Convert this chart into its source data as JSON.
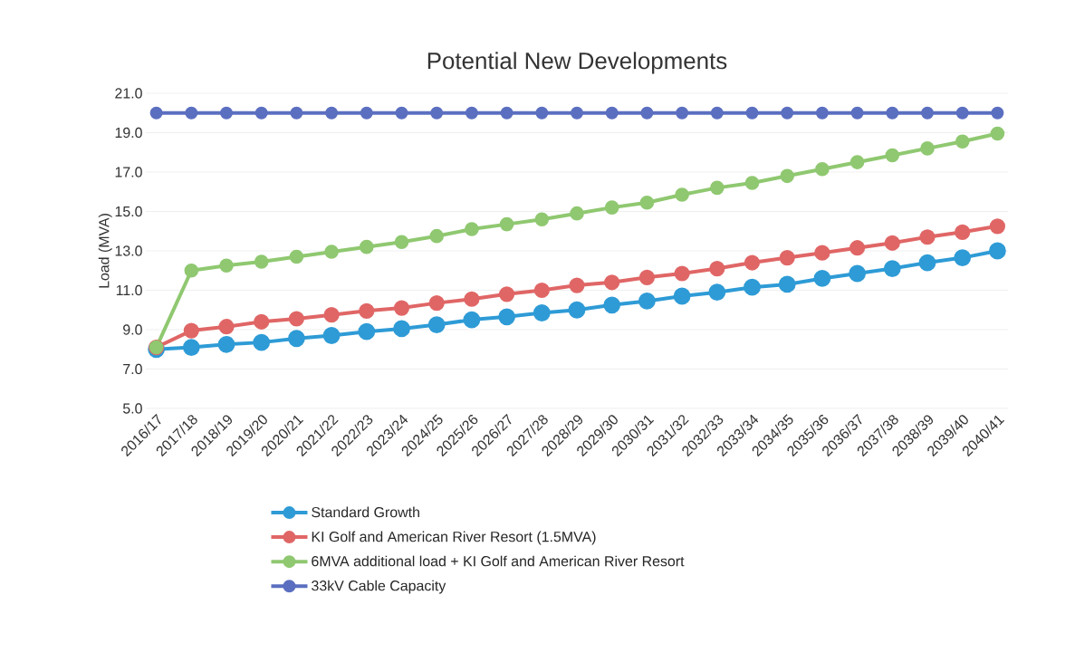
{
  "chart_data": {
    "type": "line",
    "title": "Potential New Developments",
    "ylabel": "Load (MVA)",
    "categories": [
      "2016/17",
      "2017/18",
      "2018/19",
      "2019/20",
      "2020/21",
      "2021/22",
      "2022/23",
      "2023/24",
      "2024/25",
      "2025/26",
      "2026/27",
      "2027/28",
      "2028/29",
      "2029/30",
      "2030/31",
      "2031/32",
      "2032/33",
      "2033/34",
      "2034/35",
      "2035/36",
      "2036/37",
      "2037/38",
      "2038/39",
      "2039/40",
      "2040/41"
    ],
    "series": [
      {
        "name": "Standard Growth",
        "color": "#2e9bd6",
        "values": [
          8.0,
          8.1,
          8.25,
          8.35,
          8.55,
          8.7,
          8.9,
          9.05,
          9.25,
          9.5,
          9.65,
          9.85,
          10.0,
          10.25,
          10.45,
          10.7,
          10.9,
          11.15,
          11.3,
          11.6,
          11.85,
          12.1,
          12.4,
          12.65,
          13.0
        ]
      },
      {
        "name": "KI Golf and American River Resort (1.5MVA)",
        "color": "#e06666",
        "values": [
          8.1,
          8.95,
          9.15,
          9.4,
          9.55,
          9.75,
          9.95,
          10.1,
          10.35,
          10.55,
          10.8,
          11.0,
          11.25,
          11.4,
          11.65,
          11.85,
          12.1,
          12.4,
          12.65,
          12.9,
          13.15,
          13.4,
          13.7,
          13.95,
          14.25
        ]
      },
      {
        "name": "6MVA additional load + KI Golf and American River Resort",
        "color": "#8fc870",
        "values": [
          8.1,
          12.0,
          12.25,
          12.45,
          12.7,
          12.95,
          13.2,
          13.45,
          13.75,
          14.1,
          14.35,
          14.6,
          14.9,
          15.2,
          15.45,
          15.85,
          16.2,
          16.45,
          16.8,
          17.15,
          17.5,
          17.85,
          18.2,
          18.55,
          18.95
        ]
      },
      {
        "name": "33kV Cable Capacity",
        "color": "#5b6fc0",
        "values": [
          20.0,
          20.0,
          20.0,
          20.0,
          20.0,
          20.0,
          20.0,
          20.0,
          20.0,
          20.0,
          20.0,
          20.0,
          20.0,
          20.0,
          20.0,
          20.0,
          20.0,
          20.0,
          20.0,
          20.0,
          20.0,
          20.0,
          20.0,
          20.0,
          20.0
        ]
      }
    ],
    "ylim": [
      5.0,
      21.0
    ],
    "yticks": [
      {
        "value": 5,
        "label": "5.0"
      },
      {
        "value": 7,
        "label": "7.0"
      },
      {
        "value": 9,
        "label": "9.0"
      },
      {
        "value": 11,
        "label": "11.0"
      },
      {
        "value": 13,
        "label": "13.0"
      },
      {
        "value": 15,
        "label": "15.0"
      },
      {
        "value": 17,
        "label": "17.0"
      },
      {
        "value": 19,
        "label": "19.0"
      },
      {
        "value": 21,
        "label": "21.0"
      }
    ],
    "grid": "y",
    "legend": "bottom",
    "marker": "circle",
    "line_style": "solid"
  }
}
